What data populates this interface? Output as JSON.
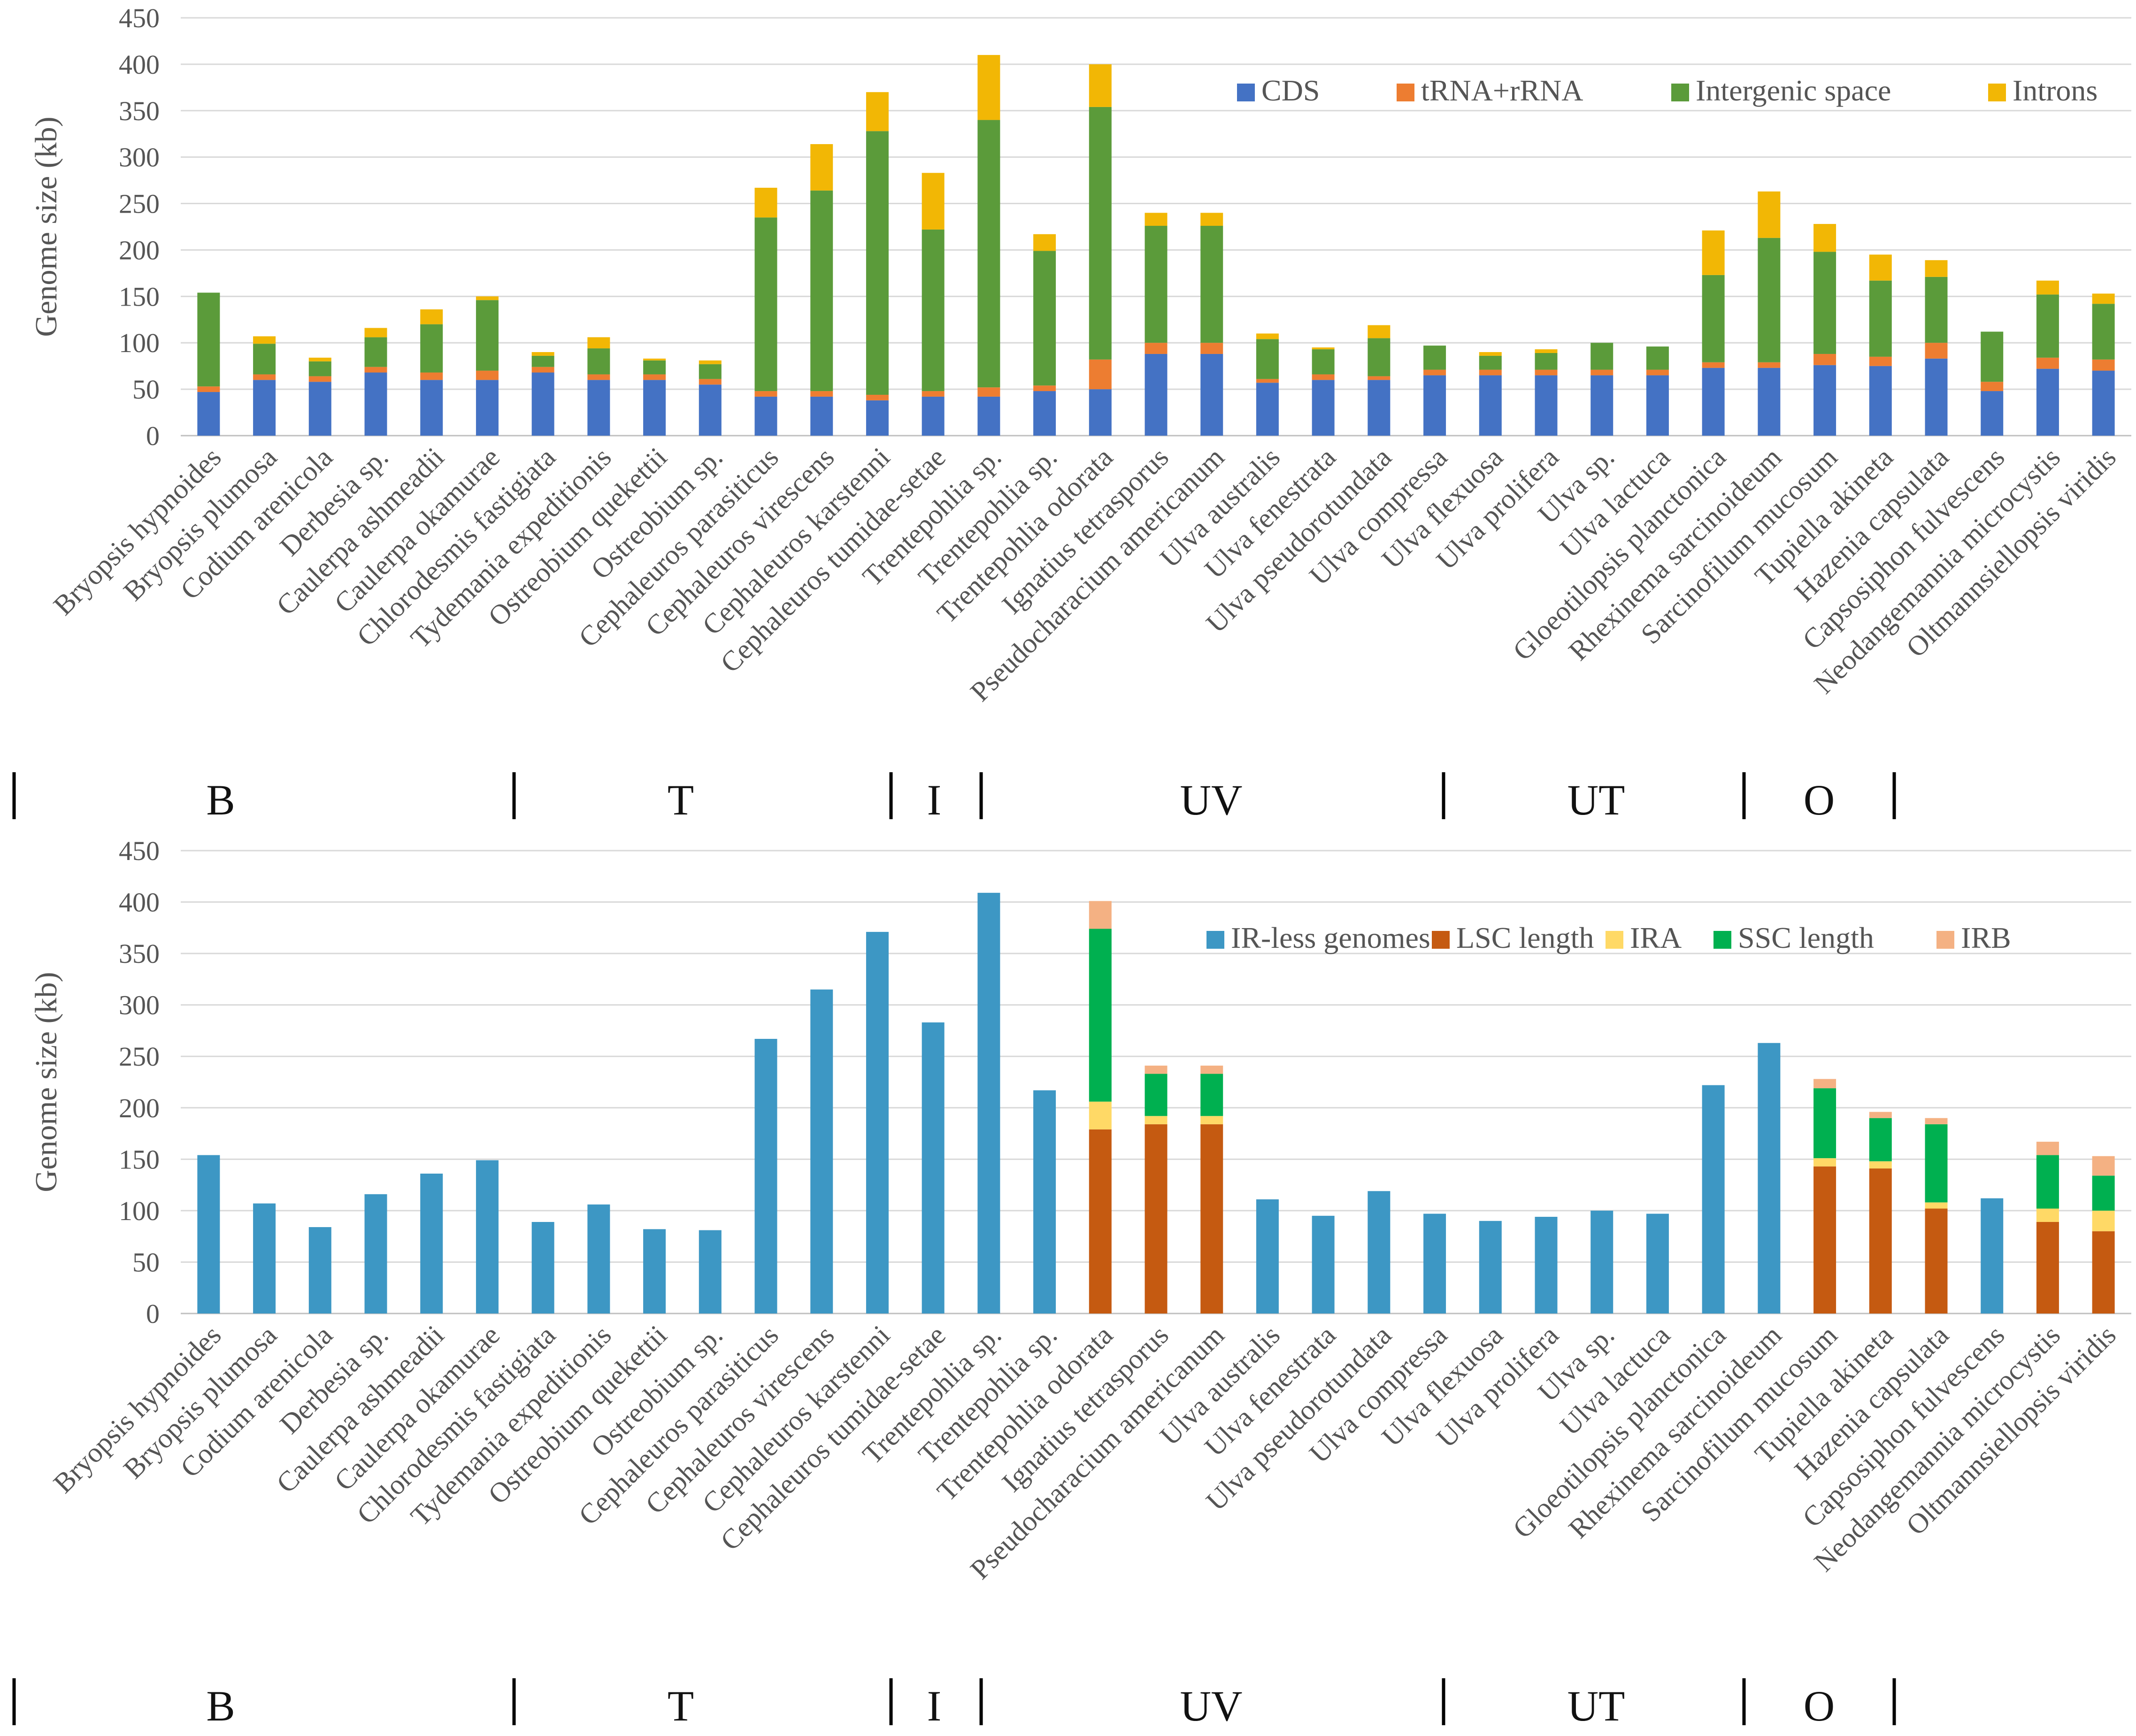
{
  "chart_data": [
    {
      "type": "bar",
      "stacked": true,
      "ylabel": "Genome size (kb)",
      "xlabel": "",
      "ylim": [
        0,
        450
      ],
      "yticks": [
        0,
        50,
        100,
        150,
        200,
        250,
        300,
        350,
        400,
        450
      ],
      "grid": true,
      "legend_position": "top-right",
      "categories": [
        "Bryopsis hypnoides",
        "Bryopsis plumosa",
        "Codium arenicola",
        "Derbesia sp.",
        "Caulerpa ashmeadii",
        "Caulerpa okamurae",
        "Chlorodesmis fastigiata",
        "Tydemania expeditionis",
        "Ostreobium quekettii",
        "Ostreobium sp.",
        "Cephaleuros parasiticus",
        "Cephaleuros virescens",
        "Cephaleuros karstenni",
        "Cephaleuros tumidae-setae",
        "Trentepohlia sp.",
        "Trentepohlia sp.",
        "Trentepohlia odorata",
        "Ignatius tetrasporus",
        "Pseudocharacium americanum",
        "Ulva australis",
        "Ulva fenestrata",
        "Ulva pseudorotundata",
        "Ulva compressa",
        "Ulva flexuosa",
        "Ulva prolifera",
        "Ulva sp.",
        "Ulva lactuca",
        "Gloeotilopsis planctonica",
        "Rhexinema sarcinoideum",
        "Sarcinofilum mucosum",
        "Tupiella akineta",
        "Hazenia capsulata",
        "Capsosiphon fulvescens",
        "Neodangemannia microcystis",
        "Oltmannsiellopsis viridis"
      ],
      "series": [
        {
          "name": "CDS",
          "color": "#4472C4",
          "values": [
            47,
            60,
            58,
            68,
            60,
            60,
            68,
            60,
            60,
            55,
            42,
            42,
            38,
            42,
            42,
            48,
            50,
            88,
            88,
            57,
            60,
            60,
            65,
            65,
            65,
            65,
            65,
            73,
            73,
            76,
            75,
            83,
            48,
            72,
            70
          ]
        },
        {
          "name": "tRNA+rRNA",
          "color": "#ED7D31",
          "values": [
            6,
            6,
            6,
            6,
            8,
            10,
            6,
            6,
            6,
            6,
            6,
            6,
            6,
            6,
            10,
            6,
            32,
            12,
            12,
            4,
            6,
            4,
            6,
            6,
            6,
            6,
            6,
            6,
            6,
            12,
            10,
            17,
            10,
            12,
            12
          ]
        },
        {
          "name": "Intergenic space",
          "color": "#5B9B3A",
          "values": [
            101,
            33,
            16,
            32,
            52,
            76,
            12,
            28,
            15,
            16,
            187,
            216,
            284,
            174,
            288,
            145,
            272,
            126,
            126,
            43,
            27,
            41,
            26,
            15,
            18,
            29,
            25,
            94,
            134,
            110,
            82,
            71,
            54,
            68,
            60
          ]
        },
        {
          "name": "Introns",
          "color": "#F2B705",
          "values": [
            0,
            8,
            4,
            10,
            16,
            4,
            4,
            12,
            2,
            4,
            32,
            50,
            42,
            61,
            70,
            18,
            46,
            14,
            14,
            6,
            2,
            14,
            0,
            4,
            4,
            0,
            0,
            48,
            50,
            30,
            28,
            18,
            0,
            15,
            11
          ]
        }
      ],
      "groups": [
        {
          "label": "B",
          "range": [
            "Bryopsis hypnoides",
            "Ostreobium sp."
          ]
        },
        {
          "label": "T",
          "range": [
            "Cephaleuros parasiticus",
            "Cephaleuros tumidae-setae"
          ]
        },
        {
          "label": "I",
          "range": [
            "Trentepohlia sp.",
            "Trentepohlia sp."
          ]
        },
        {
          "label": "UV",
          "range": [
            "Trentepohlia odorata",
            "Ulva compressa"
          ]
        },
        {
          "label": "UT",
          "range": [
            "Ulva flexuosa",
            "Rhexinema sarcinoideum"
          ]
        },
        {
          "label": "O",
          "range": [
            "Sarcinofilum mucosum",
            "Tupiella akineta"
          ]
        }
      ]
    },
    {
      "type": "bar",
      "stacked": true,
      "ylabel": "Genome size (kb)",
      "xlabel": "",
      "ylim": [
        0,
        450
      ],
      "yticks": [
        0,
        50,
        100,
        150,
        200,
        250,
        300,
        350,
        400,
        450
      ],
      "grid": true,
      "legend_position": "top-right",
      "categories": [
        "Bryopsis hypnoides",
        "Bryopsis plumosa",
        "Codium arenicola",
        "Derbesia sp.",
        "Caulerpa ashmeadii",
        "Caulerpa okamurae",
        "Chlorodesmis fastigiata",
        "Tydemania expeditionis",
        "Ostreobium quekettii",
        "Ostreobium sp.",
        "Cephaleuros parasiticus",
        "Cephaleuros virescens",
        "Cephaleuros karstenni",
        "Cephaleuros tumidae-setae",
        "Trentepohlia sp.",
        "Trentepohlia sp.",
        "Trentepohlia odorata",
        "Ignatius tetrasporus",
        "Pseudocharacium americanum",
        "Ulva australis",
        "Ulva fenestrata",
        "Ulva pseudorotundata",
        "Ulva compressa",
        "Ulva flexuosa",
        "Ulva prolifera",
        "Ulva sp.",
        "Ulva lactuca",
        "Gloeotilopsis planctonica",
        "Rhexinema sarcinoideum",
        "Sarcinofilum mucosum",
        "Tupiella akineta",
        "Hazenia capsulata",
        "Capsosiphon fulvescens",
        "Neodangemannia microcystis",
        "Oltmannsiellopsis viridis"
      ],
      "series": [
        {
          "name": "IR-less genomes",
          "color": "#3D97C4",
          "values": [
            154,
            107,
            84,
            116,
            136,
            149,
            89,
            106,
            82,
            81,
            267,
            315,
            371,
            283,
            409,
            217,
            0,
            0,
            0,
            111,
            95,
            119,
            97,
            90,
            94,
            100,
            97,
            222,
            263,
            0,
            0,
            0,
            112,
            0,
            0
          ]
        },
        {
          "name": "LSC length",
          "color": "#C55A11",
          "values": [
            0,
            0,
            0,
            0,
            0,
            0,
            0,
            0,
            0,
            0,
            0,
            0,
            0,
            0,
            0,
            0,
            179,
            184,
            184,
            0,
            0,
            0,
            0,
            0,
            0,
            0,
            0,
            0,
            0,
            143,
            141,
            102,
            0,
            89,
            80
          ]
        },
        {
          "name": "IRA",
          "color": "#FFD966",
          "values": [
            0,
            0,
            0,
            0,
            0,
            0,
            0,
            0,
            0,
            0,
            0,
            0,
            0,
            0,
            0,
            0,
            27,
            8,
            8,
            0,
            0,
            0,
            0,
            0,
            0,
            0,
            0,
            0,
            0,
            8,
            7,
            6,
            0,
            13,
            20
          ]
        },
        {
          "name": "SSC length",
          "color": "#00B050",
          "values": [
            0,
            0,
            0,
            0,
            0,
            0,
            0,
            0,
            0,
            0,
            0,
            0,
            0,
            0,
            0,
            0,
            168,
            41,
            41,
            0,
            0,
            0,
            0,
            0,
            0,
            0,
            0,
            0,
            0,
            68,
            42,
            76,
            0,
            52,
            34
          ]
        },
        {
          "name": "IRB",
          "color": "#F4B183",
          "values": [
            0,
            0,
            0,
            0,
            0,
            0,
            0,
            0,
            0,
            0,
            0,
            0,
            0,
            0,
            0,
            0,
            27,
            8,
            8,
            0,
            0,
            0,
            0,
            0,
            0,
            0,
            0,
            0,
            0,
            9,
            6,
            6,
            0,
            13,
            19
          ]
        }
      ],
      "groups": [
        {
          "label": "B",
          "range": [
            "Bryopsis hypnoides",
            "Ostreobium sp."
          ]
        },
        {
          "label": "T",
          "range": [
            "Cephaleuros parasiticus",
            "Cephaleuros tumidae-setae"
          ]
        },
        {
          "label": "I",
          "range": [
            "Trentepohlia sp.",
            "Trentepohlia sp."
          ]
        },
        {
          "label": "UV",
          "range": [
            "Trentepohlia odorata",
            "Ulva compressa"
          ]
        },
        {
          "label": "UT",
          "range": [
            "Ulva flexuosa",
            "Rhexinema sarcinoideum"
          ]
        },
        {
          "label": "O",
          "range": [
            "Sarcinofilum mucosum",
            "Tupiella akineta"
          ]
        }
      ]
    }
  ]
}
